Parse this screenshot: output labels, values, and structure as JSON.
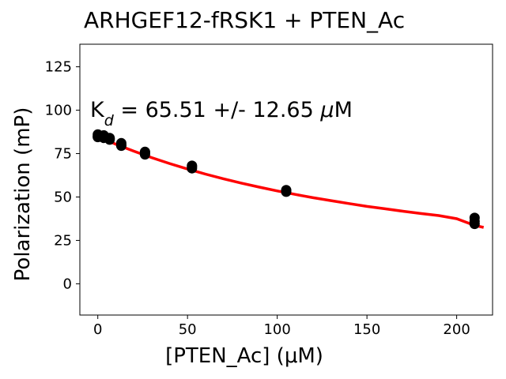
{
  "chart_data": {
    "type": "scatter",
    "title": "ARHGEF12-fRSK1 + PTEN_Ac",
    "xlabel": "[PTEN_Ac] (μM)",
    "ylabel": "Polarization (mP)",
    "xlim": [
      -10,
      220
    ],
    "ylim": [
      -18,
      138
    ],
    "xticks": [
      0,
      50,
      100,
      150,
      200
    ],
    "yticks": [
      0,
      25,
      50,
      75,
      100,
      125
    ],
    "grid": false,
    "annotation": {
      "prefix": "K",
      "subscript": "d",
      "text": " = 65.51 +/- 12.65 ",
      "unit_italic": "μ",
      "unit": "M"
    },
    "series": [
      {
        "kind": "points",
        "color": "#000000",
        "x": [
          0,
          0,
          0,
          3.3,
          3.3,
          3.3,
          6.6,
          6.6,
          6.6,
          13.1,
          13.1,
          13.1,
          26.3,
          26.3,
          26.3,
          52.5,
          52.5,
          52.5,
          105,
          105,
          105,
          210,
          210,
          210
        ],
        "y": [
          86,
          85,
          84.5,
          85.5,
          84,
          85,
          84,
          83,
          83.5,
          81,
          79.5,
          80,
          76,
          74.5,
          75.5,
          68,
          66.5,
          67.5,
          54,
          53,
          53.5,
          38,
          34.5,
          36
        ]
      },
      {
        "kind": "fit",
        "color": "#ff0000",
        "x": [
          0,
          10,
          20,
          30,
          40,
          50,
          60,
          70,
          80,
          90,
          100,
          110,
          120,
          130,
          140,
          150,
          160,
          170,
          180,
          190,
          200,
          210,
          215
        ],
        "y": [
          85,
          80.4,
          76.4,
          72.7,
          69.3,
          66.1,
          63.2,
          60.5,
          58,
          55.7,
          53.5,
          51.5,
          49.6,
          47.9,
          46.2,
          44.6,
          43.2,
          41.8,
          40.5,
          39.3,
          37.5,
          33.6,
          32.5
        ]
      }
    ]
  }
}
